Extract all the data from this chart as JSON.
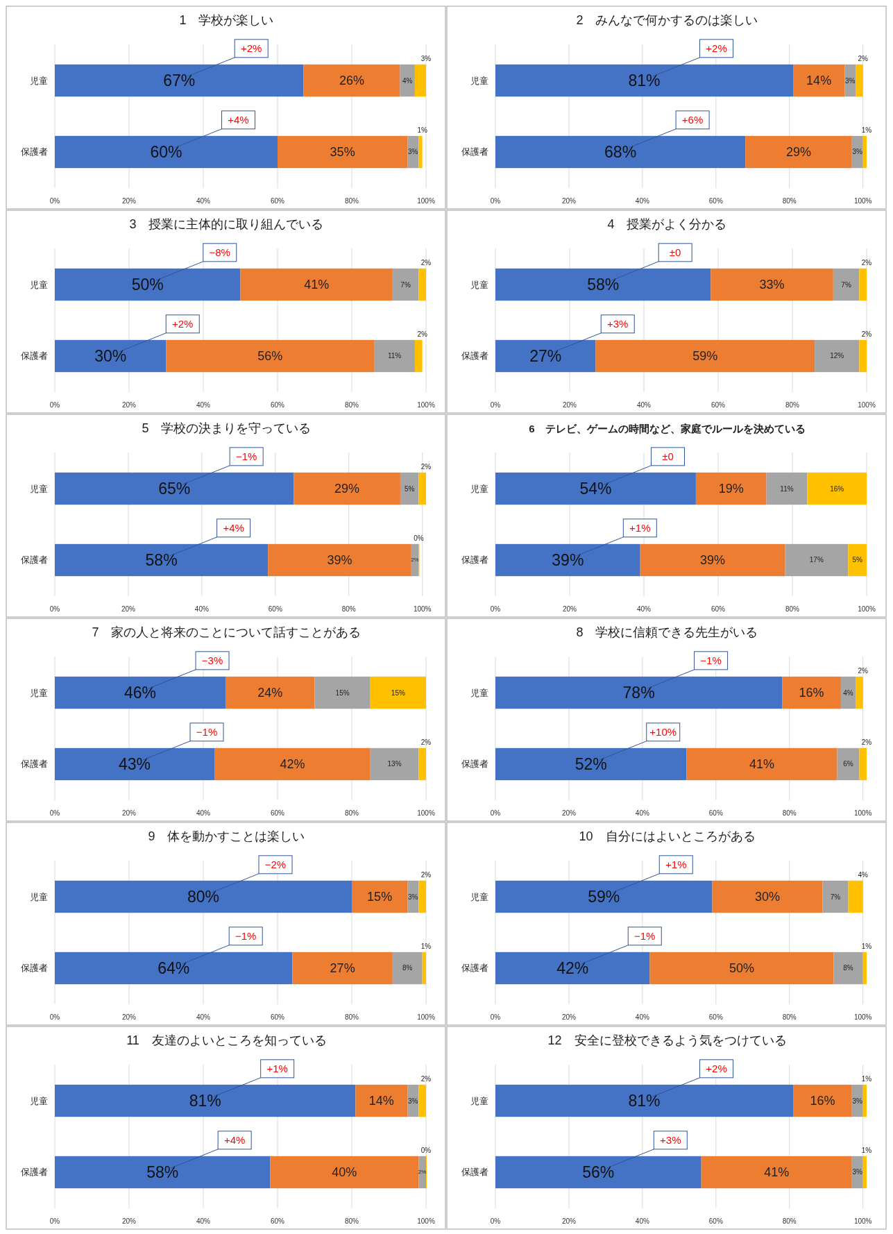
{
  "chart_data": [
    {
      "type": "bar",
      "orientation": "horizontal",
      "stacked": true,
      "title": "1　学校が楽しい",
      "categories": [
        "児童",
        "保護者"
      ],
      "series": [
        {
          "color": "#4472c4",
          "values": [
            67,
            60
          ],
          "value_labels": [
            "67%",
            "60%"
          ]
        },
        {
          "color": "#ed7d31",
          "values": [
            26,
            35
          ],
          "value_labels": [
            "26%",
            "35%"
          ]
        },
        {
          "color": "#a5a5a5",
          "values": [
            4,
            3
          ],
          "value_labels": [
            "4%",
            "3%"
          ]
        },
        {
          "color": "#ffc000",
          "values": [
            3,
            1
          ],
          "value_labels": [
            "3%",
            "1%"
          ]
        }
      ],
      "xlim": [
        0,
        100
      ],
      "xticks": [
        {
          "value": 0,
          "label": "0%"
        },
        {
          "value": 20,
          "label": "20%"
        },
        {
          "value": 40,
          "label": "40%"
        },
        {
          "value": 60,
          "label": "60%"
        },
        {
          "value": 80,
          "label": "80%"
        },
        {
          "value": 100,
          "label": "100%"
        }
      ],
      "grid": "x",
      "annotations": [
        "+2%",
        "+4%"
      ]
    },
    {
      "type": "bar",
      "orientation": "horizontal",
      "stacked": true,
      "title": "2　みんなで何かするのは楽しい",
      "categories": [
        "児童",
        "保護者"
      ],
      "series": [
        {
          "color": "#4472c4",
          "values": [
            81,
            68
          ],
          "value_labels": [
            "81%",
            "68%"
          ]
        },
        {
          "color": "#ed7d31",
          "values": [
            14,
            29
          ],
          "value_labels": [
            "14%",
            "29%"
          ]
        },
        {
          "color": "#a5a5a5",
          "values": [
            3,
            3
          ],
          "value_labels": [
            "3%",
            "3%"
          ]
        },
        {
          "color": "#ffc000",
          "values": [
            2,
            1
          ],
          "value_labels": [
            "2%",
            "1%"
          ]
        }
      ],
      "xlim": [
        0,
        101
      ],
      "xticks": [
        {
          "value": 0,
          "label": "0%"
        },
        {
          "value": 20,
          "label": "20%"
        },
        {
          "value": 40,
          "label": "40%"
        },
        {
          "value": 60,
          "label": "60%"
        },
        {
          "value": 80,
          "label": "80%"
        },
        {
          "value": 100,
          "label": "100%"
        }
      ],
      "grid": "x",
      "annotations": [
        "+2%",
        "+6%"
      ]
    },
    {
      "type": "bar",
      "orientation": "horizontal",
      "stacked": true,
      "title": "3　授業に主体的に取り組んでいる",
      "categories": [
        "児童",
        "保護者"
      ],
      "series": [
        {
          "color": "#4472c4",
          "values": [
            50,
            30
          ],
          "value_labels": [
            "50%",
            "30%"
          ]
        },
        {
          "color": "#ed7d31",
          "values": [
            41,
            56
          ],
          "value_labels": [
            "41%",
            "56%"
          ]
        },
        {
          "color": "#a5a5a5",
          "values": [
            7,
            11
          ],
          "value_labels": [
            "7%",
            "11%"
          ]
        },
        {
          "color": "#ffc000",
          "values": [
            2,
            2
          ],
          "value_labels": [
            "2%",
            "2%"
          ]
        }
      ],
      "xlim": [
        0,
        100
      ],
      "xticks": [
        {
          "value": 0,
          "label": "0%"
        },
        {
          "value": 20,
          "label": "20%"
        },
        {
          "value": 40,
          "label": "40%"
        },
        {
          "value": 60,
          "label": "60%"
        },
        {
          "value": 80,
          "label": "80%"
        },
        {
          "value": 100,
          "label": "100%"
        }
      ],
      "grid": "x",
      "annotations": [
        "−8%",
        "+2%"
      ]
    },
    {
      "type": "bar",
      "orientation": "horizontal",
      "stacked": true,
      "title": "4　授業がよく分かる",
      "categories": [
        "児童",
        "保護者"
      ],
      "series": [
        {
          "color": "#4472c4",
          "values": [
            58,
            27
          ],
          "value_labels": [
            "58%",
            "27%"
          ]
        },
        {
          "color": "#ed7d31",
          "values": [
            33,
            59
          ],
          "value_labels": [
            "33%",
            "59%"
          ]
        },
        {
          "color": "#a5a5a5",
          "values": [
            7,
            12
          ],
          "value_labels": [
            "7%",
            "12%"
          ]
        },
        {
          "color": "#ffc000",
          "values": [
            2,
            2
          ],
          "value_labels": [
            "2%",
            "2%"
          ]
        }
      ],
      "xlim": [
        0,
        100
      ],
      "xticks": [
        {
          "value": 0,
          "label": "0%"
        },
        {
          "value": 20,
          "label": "20%"
        },
        {
          "value": 40,
          "label": "40%"
        },
        {
          "value": 60,
          "label": "60%"
        },
        {
          "value": 80,
          "label": "80%"
        },
        {
          "value": 100,
          "label": "100%"
        }
      ],
      "grid": "x",
      "annotations": [
        "±0",
        "+3%"
      ]
    },
    {
      "type": "bar",
      "orientation": "horizontal",
      "stacked": true,
      "title": "5　学校の決まりを守っている",
      "categories": [
        "児童",
        "保護者"
      ],
      "series": [
        {
          "color": "#4472c4",
          "values": [
            65,
            58
          ],
          "value_labels": [
            "65%",
            "58%"
          ]
        },
        {
          "color": "#ed7d31",
          "values": [
            29,
            39
          ],
          "value_labels": [
            "29%",
            "39%"
          ]
        },
        {
          "color": "#a5a5a5",
          "values": [
            5,
            2
          ],
          "value_labels": [
            "5%",
            "2%"
          ]
        },
        {
          "color": "#ffc000",
          "values": [
            2,
            0
          ],
          "value_labels": [
            "2%",
            "0%"
          ]
        }
      ],
      "xlim": [
        0,
        101
      ],
      "xticks": [
        {
          "value": 0,
          "label": "0%"
        },
        {
          "value": 20,
          "label": "20%"
        },
        {
          "value": 40,
          "label": "40%"
        },
        {
          "value": 60,
          "label": "60%"
        },
        {
          "value": 80,
          "label": "80%"
        },
        {
          "value": 100,
          "label": "100%"
        }
      ],
      "grid": "x",
      "annotations": [
        "−1%",
        "+4%"
      ]
    },
    {
      "type": "bar",
      "orientation": "horizontal",
      "stacked": true,
      "title": "6　テレビ、ゲームの時間など、家庭でルールを決めている",
      "categories": [
        "児童",
        "保護者"
      ],
      "series": [
        {
          "color": "#4472c4",
          "values": [
            54,
            39
          ],
          "value_labels": [
            "54%",
            "39%"
          ]
        },
        {
          "color": "#ed7d31",
          "values": [
            19,
            39
          ],
          "value_labels": [
            "19%",
            "39%"
          ]
        },
        {
          "color": "#a5a5a5",
          "values": [
            11,
            17
          ],
          "value_labels": [
            "11%",
            "17%"
          ]
        },
        {
          "color": "#ffc000",
          "values": [
            16,
            5
          ],
          "value_labels": [
            "16%",
            "5%"
          ]
        }
      ],
      "xlim": [
        0,
        100
      ],
      "xticks": [
        {
          "value": 0,
          "label": "0%"
        },
        {
          "value": 20,
          "label": "20%"
        },
        {
          "value": 40,
          "label": "40%"
        },
        {
          "value": 60,
          "label": "60%"
        },
        {
          "value": 80,
          "label": "80%"
        },
        {
          "value": 100,
          "label": "100%"
        }
      ],
      "grid": "x",
      "annotations": [
        "±0",
        "+1%"
      ]
    },
    {
      "type": "bar",
      "orientation": "horizontal",
      "stacked": true,
      "title": "7　家の人と将来のことについて話すことがある",
      "categories": [
        "児童",
        "保護者"
      ],
      "series": [
        {
          "color": "#4472c4",
          "values": [
            46,
            43
          ],
          "value_labels": [
            "46%",
            "43%"
          ]
        },
        {
          "color": "#ed7d31",
          "values": [
            24,
            42
          ],
          "value_labels": [
            "24%",
            "42%"
          ]
        },
        {
          "color": "#a5a5a5",
          "values": [
            15,
            13
          ],
          "value_labels": [
            "15%",
            "13%"
          ]
        },
        {
          "color": "#ffc000",
          "values": [
            15,
            2
          ],
          "value_labels": [
            "15%",
            "2%"
          ]
        }
      ],
      "xlim": [
        0,
        100
      ],
      "xticks": [
        {
          "value": 0,
          "label": "0%"
        },
        {
          "value": 20,
          "label": "20%"
        },
        {
          "value": 40,
          "label": "40%"
        },
        {
          "value": 60,
          "label": "60%"
        },
        {
          "value": 80,
          "label": "80%"
        },
        {
          "value": 100,
          "label": "100%"
        }
      ],
      "grid": "x",
      "annotations": [
        "−3%",
        "−1%"
      ]
    },
    {
      "type": "bar",
      "orientation": "horizontal",
      "stacked": true,
      "title": "8　学校に信頼できる先生がいる",
      "categories": [
        "児童",
        "保護者"
      ],
      "series": [
        {
          "color": "#4472c4",
          "values": [
            78,
            52
          ],
          "value_labels": [
            "78%",
            "52%"
          ]
        },
        {
          "color": "#ed7d31",
          "values": [
            16,
            41
          ],
          "value_labels": [
            "16%",
            "41%"
          ]
        },
        {
          "color": "#a5a5a5",
          "values": [
            4,
            6
          ],
          "value_labels": [
            "4%",
            "6%"
          ]
        },
        {
          "color": "#ffc000",
          "values": [
            2,
            2
          ],
          "value_labels": [
            "2%",
            "2%"
          ]
        }
      ],
      "xlim": [
        0,
        101
      ],
      "xticks": [
        {
          "value": 0,
          "label": "0%"
        },
        {
          "value": 20,
          "label": "20%"
        },
        {
          "value": 40,
          "label": "40%"
        },
        {
          "value": 60,
          "label": "60%"
        },
        {
          "value": 80,
          "label": "80%"
        },
        {
          "value": 100,
          "label": "100%"
        }
      ],
      "grid": "x",
      "annotations": [
        "−1%",
        "+10%"
      ]
    },
    {
      "type": "bar",
      "orientation": "horizontal",
      "stacked": true,
      "title": "9　体を動かすことは楽しい",
      "categories": [
        "児童",
        "保護者"
      ],
      "series": [
        {
          "color": "#4472c4",
          "values": [
            80,
            64
          ],
          "value_labels": [
            "80%",
            "64%"
          ]
        },
        {
          "color": "#ed7d31",
          "values": [
            15,
            27
          ],
          "value_labels": [
            "15%",
            "27%"
          ]
        },
        {
          "color": "#a5a5a5",
          "values": [
            3,
            8
          ],
          "value_labels": [
            "3%",
            "8%"
          ]
        },
        {
          "color": "#ffc000",
          "values": [
            2,
            1
          ],
          "value_labels": [
            "2%",
            "1%"
          ]
        }
      ],
      "xlim": [
        0,
        100
      ],
      "xticks": [
        {
          "value": 0,
          "label": "0%"
        },
        {
          "value": 20,
          "label": "20%"
        },
        {
          "value": 40,
          "label": "40%"
        },
        {
          "value": 60,
          "label": "60%"
        },
        {
          "value": 80,
          "label": "80%"
        },
        {
          "value": 100,
          "label": "100%"
        }
      ],
      "grid": "x",
      "annotations": [
        "−2%",
        "−1%"
      ]
    },
    {
      "type": "bar",
      "orientation": "horizontal",
      "stacked": true,
      "title": "10　自分にはよいところがある",
      "categories": [
        "児童",
        "保護者"
      ],
      "series": [
        {
          "color": "#4472c4",
          "values": [
            59,
            42
          ],
          "value_labels": [
            "59%",
            "42%"
          ]
        },
        {
          "color": "#ed7d31",
          "values": [
            30,
            50
          ],
          "value_labels": [
            "30%",
            "50%"
          ]
        },
        {
          "color": "#a5a5a5",
          "values": [
            7,
            8
          ],
          "value_labels": [
            "7%",
            "8%"
          ]
        },
        {
          "color": "#ffc000",
          "values": [
            4,
            1
          ],
          "value_labels": [
            "4%",
            "1%"
          ]
        }
      ],
      "xlim": [
        0,
        101
      ],
      "xticks": [
        {
          "value": 0,
          "label": "0%"
        },
        {
          "value": 20,
          "label": "20%"
        },
        {
          "value": 40,
          "label": "40%"
        },
        {
          "value": 60,
          "label": "60%"
        },
        {
          "value": 80,
          "label": "80%"
        },
        {
          "value": 100,
          "label": "100%"
        }
      ],
      "grid": "x",
      "annotations": [
        "+1%",
        "−1%"
      ]
    },
    {
      "type": "bar",
      "orientation": "horizontal",
      "stacked": true,
      "title": "11　友達のよいところを知っている",
      "categories": [
        "児童",
        "保護者"
      ],
      "series": [
        {
          "color": "#4472c4",
          "values": [
            81,
            58
          ],
          "value_labels": [
            "81%",
            "58%"
          ]
        },
        {
          "color": "#ed7d31",
          "values": [
            14,
            40
          ],
          "value_labels": [
            "14%",
            "40%"
          ]
        },
        {
          "color": "#a5a5a5",
          "values": [
            3,
            2
          ],
          "value_labels": [
            "3%",
            "2%"
          ]
        },
        {
          "color": "#ffc000",
          "values": [
            2,
            0
          ],
          "value_labels": [
            "2%",
            "0%"
          ]
        }
      ],
      "xlim": [
        0,
        100
      ],
      "xticks": [
        {
          "value": 0,
          "label": "0%"
        },
        {
          "value": 20,
          "label": "20%"
        },
        {
          "value": 40,
          "label": "40%"
        },
        {
          "value": 60,
          "label": "60%"
        },
        {
          "value": 80,
          "label": "80%"
        },
        {
          "value": 100,
          "label": "100%"
        }
      ],
      "grid": "x",
      "annotations": [
        "+1%",
        "+4%"
      ]
    },
    {
      "type": "bar",
      "orientation": "horizontal",
      "stacked": true,
      "title": "12　安全に登校できるよう気をつけている",
      "categories": [
        "児童",
        "保護者"
      ],
      "series": [
        {
          "color": "#4472c4",
          "values": [
            81,
            56
          ],
          "value_labels": [
            "81%",
            "56%"
          ]
        },
        {
          "color": "#ed7d31",
          "values": [
            16,
            41
          ],
          "value_labels": [
            "16%",
            "41%"
          ]
        },
        {
          "color": "#a5a5a5",
          "values": [
            3,
            3
          ],
          "value_labels": [
            "3%",
            "3%"
          ]
        },
        {
          "color": "#ffc000",
          "values": [
            1,
            1
          ],
          "value_labels": [
            "1%",
            "1%"
          ]
        }
      ],
      "xlim": [
        0,
        101
      ],
      "xticks": [
        {
          "value": 0,
          "label": "0%"
        },
        {
          "value": 20,
          "label": "20%"
        },
        {
          "value": 40,
          "label": "40%"
        },
        {
          "value": 60,
          "label": "60%"
        },
        {
          "value": 80,
          "label": "80%"
        },
        {
          "value": 100,
          "label": "100%"
        }
      ],
      "grid": "x",
      "annotations": [
        "+2%",
        "+3%"
      ]
    }
  ]
}
